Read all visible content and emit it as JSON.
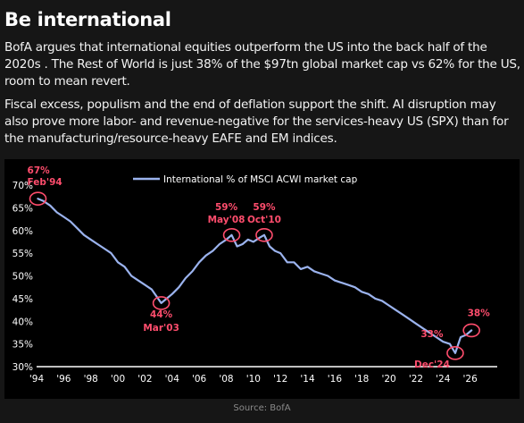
{
  "heading": {
    "title": "Be international"
  },
  "body": {
    "paragraph1": "BofA argues that international equities outperform the US into the back half of the 2020s . The Rest of World is just 38% of the $97tn global market cap vs 62% for the US, room to mean revert.",
    "paragraph2": "Fiscal excess, populism and the end of deflation support the shift. AI disruption may also prove more labor- and revenue-negative for the services-heavy US (SPX) than for the manufacturing/resource-heavy EAFE and EM indices."
  },
  "source": "Source: BofA",
  "colors": {
    "series": "#9bb3ee",
    "annotation": "#ff4d6d",
    "axis": "#ffffff",
    "background": "#000000"
  },
  "chart_data": {
    "type": "line",
    "xlim": [
      1994,
      2028
    ],
    "ylim": [
      30,
      70
    ],
    "x_ticks": [
      1994,
      1996,
      1998,
      2000,
      2002,
      2004,
      2006,
      2008,
      2010,
      2012,
      2014,
      2016,
      2018,
      2020,
      2022,
      2024,
      2026
    ],
    "x_tick_labels": [
      "'94",
      "'96",
      "'98",
      "'00",
      "'02",
      "'04",
      "'06",
      "'08",
      "'10",
      "'12",
      "'14",
      "'16",
      "'18",
      "'20",
      "'22",
      "'24",
      "'26"
    ],
    "y_ticks": [
      30,
      35,
      40,
      45,
      50,
      55,
      60,
      65,
      70
    ],
    "y_tick_labels": [
      "30%",
      "35%",
      "40%",
      "45%",
      "50%",
      "55%",
      "60%",
      "65%",
      "70%"
    ],
    "grid": false,
    "legend_position": "top-center",
    "series": [
      {
        "name": "International % of MSCI ACWI market cap",
        "x": [
          1994.1,
          1994.5,
          1995.0,
          1995.5,
          1996.0,
          1996.5,
          1997.0,
          1997.5,
          1998.0,
          1998.5,
          1999.0,
          1999.5,
          2000.0,
          2000.5,
          2001.0,
          2001.5,
          2002.0,
          2002.5,
          2003.2,
          2003.6,
          2004.0,
          2004.5,
          2005.0,
          2005.5,
          2006.0,
          2006.5,
          2007.0,
          2007.5,
          2008.0,
          2008.4,
          2008.8,
          2009.2,
          2009.6,
          2010.0,
          2010.5,
          2010.8,
          2011.2,
          2011.6,
          2012.0,
          2012.5,
          2013.0,
          2013.5,
          2014.0,
          2014.5,
          2015.0,
          2015.5,
          2016.0,
          2016.5,
          2017.0,
          2017.5,
          2018.0,
          2018.5,
          2019.0,
          2019.5,
          2020.0,
          2020.5,
          2021.0,
          2021.5,
          2022.0,
          2022.5,
          2023.0,
          2023.5,
          2024.0,
          2024.5,
          2024.9,
          2025.3,
          2025.7,
          2026.1
        ],
        "values": [
          67,
          66.5,
          65.5,
          64,
          63,
          62,
          60.5,
          59,
          58,
          57,
          56,
          55,
          53,
          52,
          50,
          49,
          48,
          47,
          44,
          45,
          46,
          47.5,
          49.5,
          51,
          53,
          54.5,
          55.5,
          57,
          58,
          59,
          56.5,
          57,
          58,
          57.5,
          58.5,
          59,
          56.5,
          55.5,
          55,
          53,
          53,
          51.5,
          52,
          51,
          50.5,
          50,
          49,
          48.5,
          48,
          47.5,
          46.5,
          46,
          45,
          44.5,
          43.5,
          42.5,
          41.5,
          40.5,
          39.5,
          38.5,
          37.5,
          36.5,
          35.5,
          35,
          33,
          36.5,
          37,
          38
        ]
      }
    ],
    "annotations": [
      {
        "label": "67%",
        "sublabel": "Feb'94",
        "x": 1994.1,
        "y": 67
      },
      {
        "label": "44%",
        "sublabel": "Mar'03",
        "x": 2003.2,
        "y": 44
      },
      {
        "label": "59%",
        "sublabel": "May'08",
        "x": 2008.4,
        "y": 59
      },
      {
        "label": "59%",
        "sublabel": "Oct'10",
        "x": 2010.8,
        "y": 59
      },
      {
        "label": "33%",
        "sublabel": "Dec'24",
        "x": 2024.9,
        "y": 33
      },
      {
        "label": "38%",
        "sublabel": "",
        "x": 2026.1,
        "y": 38
      }
    ]
  }
}
